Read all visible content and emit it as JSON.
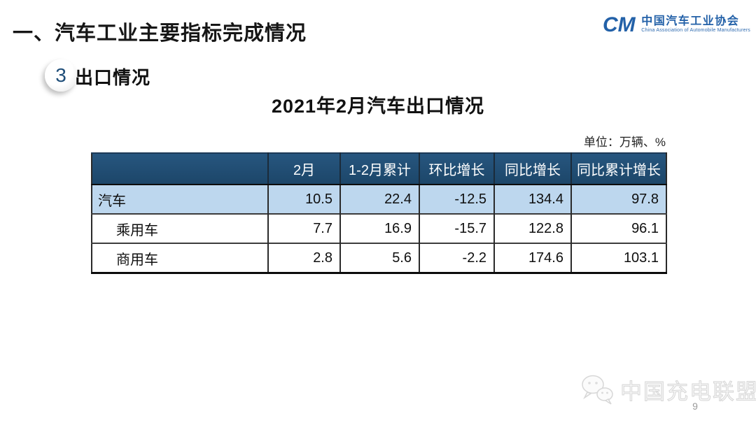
{
  "header": {
    "title": "一、汽车工业主要指标完成情况",
    "logo": {
      "mark": "CM",
      "name_cn": "中国汽车工业协会",
      "name_en": "China Association of Automobile Manufacturers"
    }
  },
  "section": {
    "badge_number": "3",
    "label": "出口情况"
  },
  "chart_data": {
    "type": "table",
    "title": "2021年2月汽车出口情况",
    "unit": "单位：万辆、%",
    "columns": [
      "",
      "2月",
      "1-2月累计",
      "环比增长",
      "同比增长",
      "同比累计增长"
    ],
    "rows": [
      {
        "label": "汽车",
        "values": [
          "10.5",
          "22.4",
          "-12.5",
          "134.4",
          "97.8"
        ],
        "highlight": true,
        "indent": false
      },
      {
        "label": "乘用车",
        "values": [
          "7.7",
          "16.9",
          "-15.7",
          "122.8",
          "96.1"
        ],
        "highlight": false,
        "indent": true
      },
      {
        "label": "商用车",
        "values": [
          "2.8",
          "5.6",
          "-2.2",
          "174.6",
          "103.1"
        ],
        "highlight": false,
        "indent": true
      }
    ]
  },
  "footer": {
    "watermark": "中国充电联盟",
    "page_number": "9"
  },
  "colors": {
    "table_header_bg": "#1F4E79",
    "highlight_row_bg": "#BDD7EE",
    "logo_blue": "#2361A8",
    "badge_number_color": "#1F4E79",
    "watermark_gray": "#D7D7D7"
  }
}
